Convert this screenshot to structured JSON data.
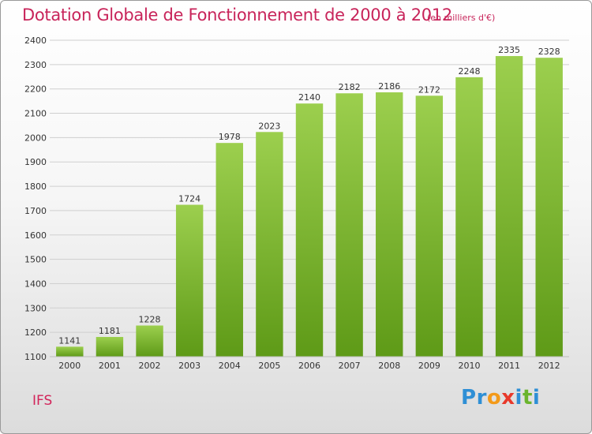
{
  "title": "Dotation Globale de Fonctionnement de 2000 à 2012",
  "subtitle": "(en milliers d'€)",
  "commune": "IFS",
  "logo": {
    "letters": [
      "P",
      "r",
      "o",
      "x",
      "i",
      "t",
      "i"
    ],
    "colors": [
      "#2f8fd5",
      "#2f8fd5",
      "#f39a1a",
      "#e8392b",
      "#2f8fd5",
      "#6ab42d",
      "#2f8fd5"
    ]
  },
  "colors": {
    "bar_top": "#9ccf4e",
    "bar_bottom": "#5e9a17",
    "grid": "#cfcfcf",
    "axis_text": "#333333",
    "title": "#c8245a"
  },
  "chart_data": {
    "type": "bar",
    "categories": [
      "2000",
      "2001",
      "2002",
      "2003",
      "2004",
      "2005",
      "2006",
      "2007",
      "2008",
      "2009",
      "2010",
      "2011",
      "2012"
    ],
    "values": [
      1141,
      1181,
      1228,
      1724,
      1978,
      2023,
      2140,
      2182,
      2186,
      2172,
      2248,
      2335,
      2328
    ],
    "ylim": [
      1100,
      2400
    ],
    "yticks": [
      1100,
      1200,
      1300,
      1400,
      1500,
      1600,
      1700,
      1800,
      1900,
      2000,
      2100,
      2200,
      2300,
      2400
    ],
    "grid": true,
    "data_labels": true
  }
}
